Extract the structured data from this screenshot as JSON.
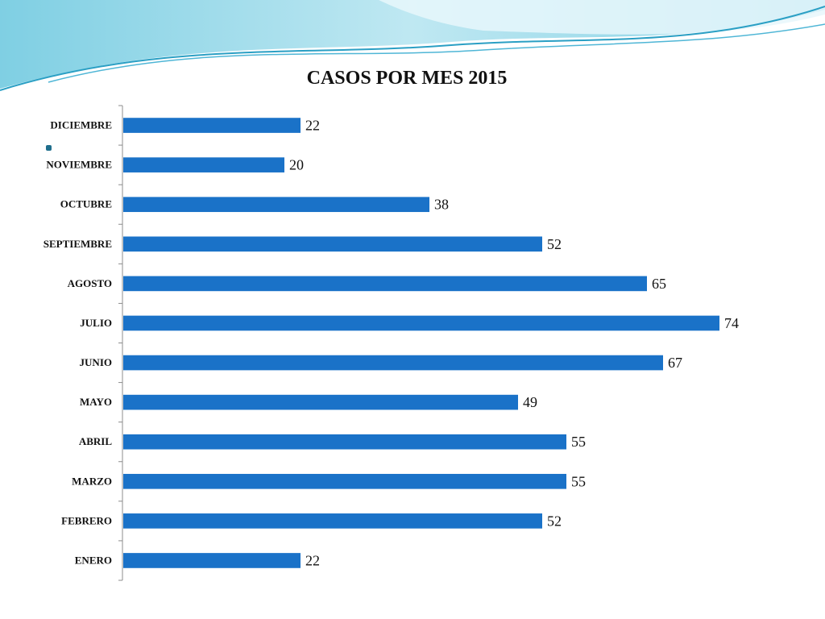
{
  "colors": {
    "bar": "#1A72C8",
    "axis": "#8C8C8C",
    "accent": "#1F6E8C",
    "wave_light": "#BFE8F2",
    "wave_mid": "#7FCFE3",
    "wave_dark": "#2A9FC4"
  },
  "chart_data": {
    "type": "bar",
    "orientation": "horizontal",
    "title": "CASOS POR MES 2015",
    "categories": [
      "ENERO",
      "FEBRERO",
      "MARZO",
      "ABRIL",
      "MAYO",
      "JUNIO",
      "JULIO",
      "AGOSTO",
      "SEPTIEMBRE",
      "OCTUBRE",
      "NOVIEMBRE",
      "DICIEMBRE"
    ],
    "values": [
      22,
      52,
      55,
      55,
      49,
      67,
      74,
      65,
      52,
      38,
      20,
      22
    ],
    "xlim": [
      0,
      80
    ],
    "grid": false,
    "legend": false,
    "data_labels": true
  }
}
